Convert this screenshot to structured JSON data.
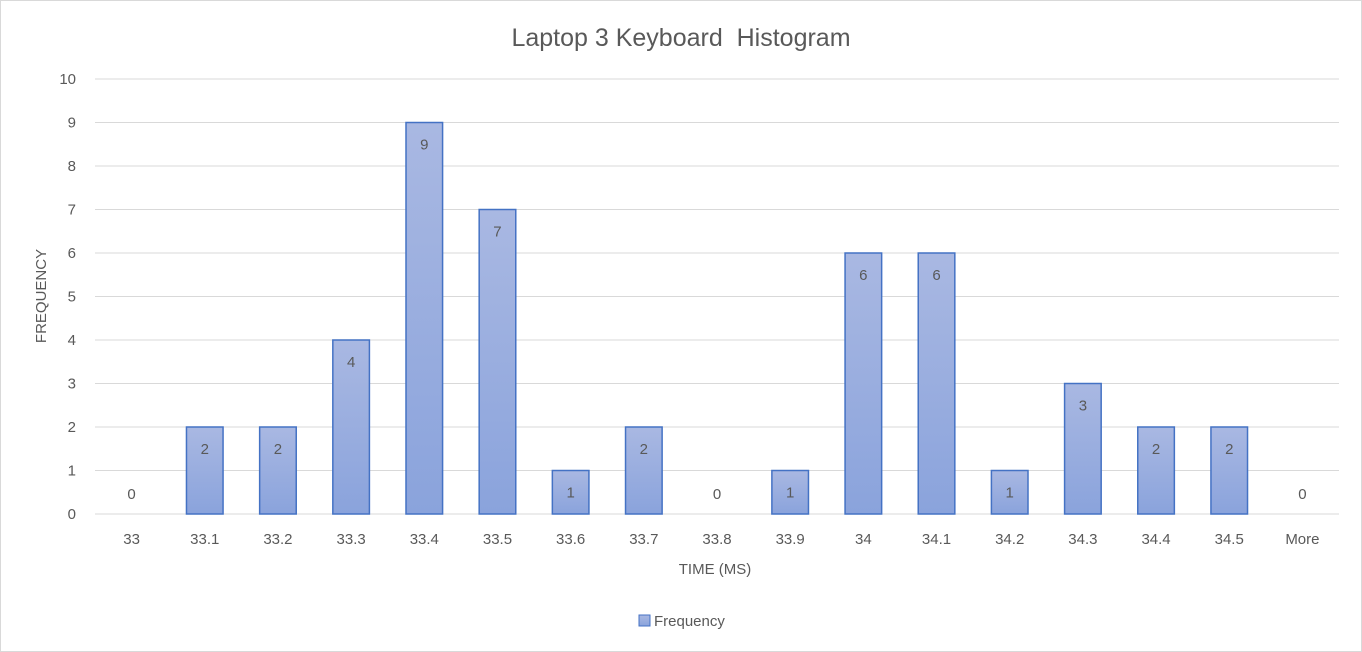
{
  "chart_data": {
    "type": "bar",
    "title": "Laptop 3 Keyboard  Histogram",
    "xlabel": "TIME (MS)",
    "ylabel": "FREQUENCY",
    "categories": [
      "33",
      "33.1",
      "33.2",
      "33.3",
      "33.4",
      "33.5",
      "33.6",
      "33.7",
      "33.8",
      "33.9",
      "34",
      "34.1",
      "34.2",
      "34.3",
      "34.4",
      "34.5",
      "More"
    ],
    "series": [
      {
        "name": "Frequency",
        "values": [
          0,
          2,
          2,
          4,
          9,
          7,
          1,
          2,
          0,
          1,
          6,
          6,
          1,
          3,
          2,
          2,
          0
        ]
      }
    ],
    "ylim": [
      0,
      10
    ],
    "yticks": [
      "0",
      "1",
      "2",
      "3",
      "4",
      "5",
      "6",
      "7",
      "8",
      "9",
      "10"
    ],
    "grid": true,
    "legend_position": "bottom",
    "data_labels": true,
    "colors": {
      "bar_fill_top": "#a9b8e2",
      "bar_fill_bottom": "#8aa3dc",
      "bar_stroke": "#4472c4",
      "text": "#595959",
      "grid": "#d9d9d9"
    }
  }
}
